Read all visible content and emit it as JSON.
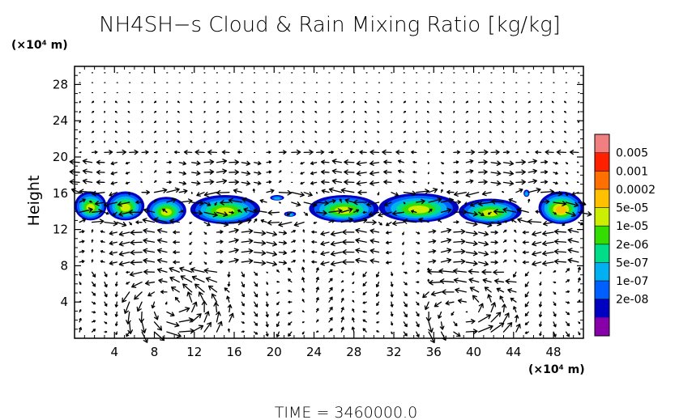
{
  "chart_data": {
    "type": "heatmap",
    "title": "NH4SH−s Cloud & Rain Mixing Ratio [kg/kg]",
    "ylabel": "Height",
    "y_unit": "(×10⁴ m)",
    "x_unit": "(×10⁴ m)",
    "footer": "TIME = 3460000.0",
    "xlim": [
      0,
      51
    ],
    "ylim": [
      0,
      30
    ],
    "x_ticks": [
      4,
      8,
      12,
      16,
      20,
      24,
      28,
      32,
      36,
      40,
      44,
      48
    ],
    "y_ticks": [
      4,
      8,
      12,
      16,
      20,
      24,
      28
    ],
    "colorbar": {
      "labels": [
        "0.005",
        "0.001",
        "0.0002",
        "5e-05",
        "1e-05",
        "2e-06",
        "5e-07",
        "1e-07",
        "2e-08"
      ],
      "colors": [
        "#f08080",
        "#ff2000",
        "#ff7000",
        "#ffc000",
        "#ccee00",
        "#33dd00",
        "#00dd88",
        "#00b0f0",
        "#0060ff",
        "#0000c0",
        "#8800aa"
      ]
    },
    "cloud_cells": [
      {
        "x0": 0,
        "x1": 3.2,
        "y0": 13.0,
        "y1": 16.2,
        "peak": 4
      },
      {
        "x0": 3.2,
        "x1": 7.0,
        "y0": 13.0,
        "y1": 16.2,
        "peak": 4
      },
      {
        "x0": 7.2,
        "x1": 11.2,
        "y0": 12.6,
        "y1": 15.6,
        "peak": 4
      },
      {
        "x0": 11.6,
        "x1": 18.6,
        "y0": 12.6,
        "y1": 15.8,
        "peak": 4
      },
      {
        "x0": 19.6,
        "x1": 21.0,
        "y0": 15.2,
        "y1": 15.8,
        "peak": 1
      },
      {
        "x0": 21.0,
        "x1": 22.2,
        "y0": 13.4,
        "y1": 14.0,
        "peak": 1
      },
      {
        "x0": 23.5,
        "x1": 30.5,
        "y0": 12.8,
        "y1": 15.8,
        "peak": 4
      },
      {
        "x0": 30.5,
        "x1": 38.5,
        "y0": 12.8,
        "y1": 16.0,
        "peak": 4
      },
      {
        "x0": 38.5,
        "x1": 44.8,
        "y0": 12.6,
        "y1": 15.4,
        "peak": 4
      },
      {
        "x0": 45.0,
        "x1": 45.6,
        "y0": 15.6,
        "y1": 16.4,
        "peak": 1
      },
      {
        "x0": 46.5,
        "x1": 51,
        "y0": 12.6,
        "y1": 16.2,
        "peak": 5
      }
    ]
  }
}
